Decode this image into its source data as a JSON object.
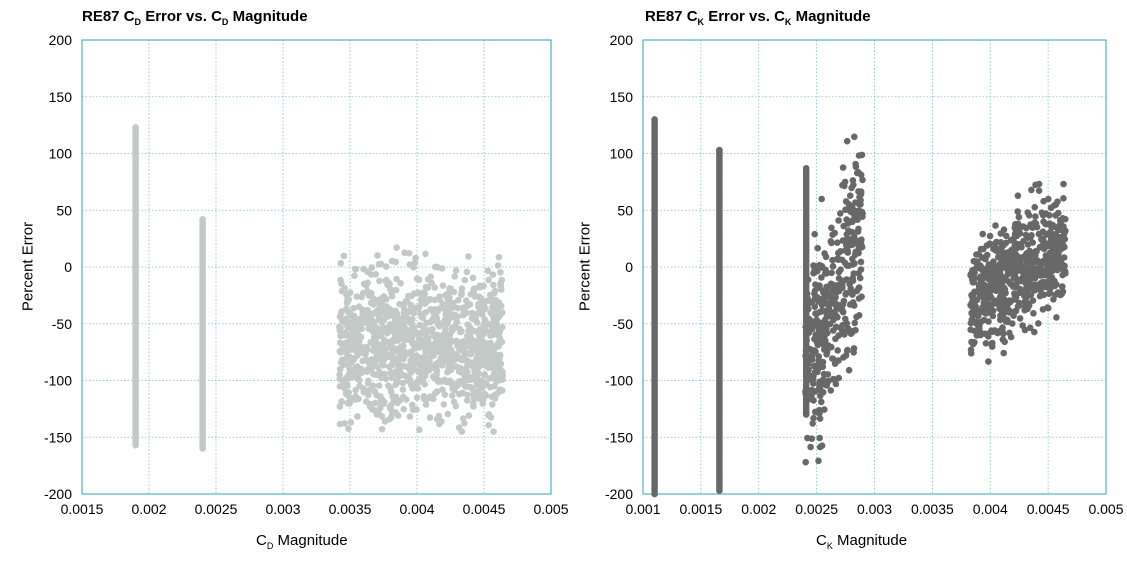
{
  "chart_data": [
    {
      "type": "scatter",
      "title_parts": [
        "RE87 C",
        "D",
        " Error vs. C",
        "D",
        " Magnitude"
      ],
      "xlabel_parts": [
        "C",
        "D",
        " Magnitude"
      ],
      "ylabel": "Percent Error",
      "xlim": [
        0.0015,
        0.005
      ],
      "ylim": [
        -200,
        200
      ],
      "x_ticks": [
        "0.0015",
        "0.002",
        "0.0025",
        "0.003",
        "0.0035",
        "0.004",
        "0.0045",
        "0.005"
      ],
      "y_ticks": [
        "200",
        "150",
        "100",
        "50",
        "0",
        "-50",
        "-100",
        "-150",
        "-200"
      ],
      "grid": true,
      "marker_color": "#c3c9c6",
      "series": [
        {
          "clusters": [
            {
              "type": "column",
              "x": 0.0019,
              "y_min": -157,
              "y_max": 123
            },
            {
              "type": "column",
              "x": 0.0024,
              "y_min": -160,
              "y_max": 42
            },
            {
              "type": "cloud",
              "x_min": 0.00342,
              "x_max": 0.00464,
              "y_mid_start": -70,
              "y_mid_end": -65,
              "spread": 32,
              "y_min": -145,
              "y_max": 35
            }
          ]
        }
      ]
    },
    {
      "type": "scatter",
      "title_parts": [
        "RE87 C",
        "K",
        " Error vs. C",
        "K",
        " Magnitude"
      ],
      "xlabel_parts": [
        "C",
        "K",
        " Magnitude"
      ],
      "ylabel": "Percent Error",
      "xlim": [
        0.001,
        0.005
      ],
      "ylim": [
        -200,
        200
      ],
      "x_ticks": [
        "0.001",
        "0.0015",
        "0.002",
        "0.0025",
        "0.003",
        "0.0035",
        "0.004",
        "0.0045",
        "0.005"
      ],
      "y_ticks": [
        "200",
        "150",
        "100",
        "50",
        "0",
        "-50",
        "-100",
        "-150",
        "-200"
      ],
      "grid": true,
      "marker_color": "#686868",
      "series": [
        {
          "clusters": [
            {
              "type": "column",
              "x": 0.0011,
              "y_min": -200,
              "y_max": 130
            },
            {
              "type": "column",
              "x": 0.00166,
              "y_min": -197,
              "y_max": 103
            },
            {
              "type": "column",
              "x": 0.00241,
              "y_min": -130,
              "y_max": 87
            },
            {
              "type": "cloud",
              "x_min": 0.0024,
              "x_max": 0.0029,
              "y_mid_start": -95,
              "y_mid_end": 35,
              "spread": 40,
              "y_min": -172,
              "y_max": 115
            },
            {
              "type": "cloud",
              "x_min": 0.00383,
              "x_max": 0.00465,
              "y_mid_start": -30,
              "y_mid_end": 20,
              "spread": 24,
              "y_min": -112,
              "y_max": 73
            }
          ]
        }
      ]
    }
  ]
}
